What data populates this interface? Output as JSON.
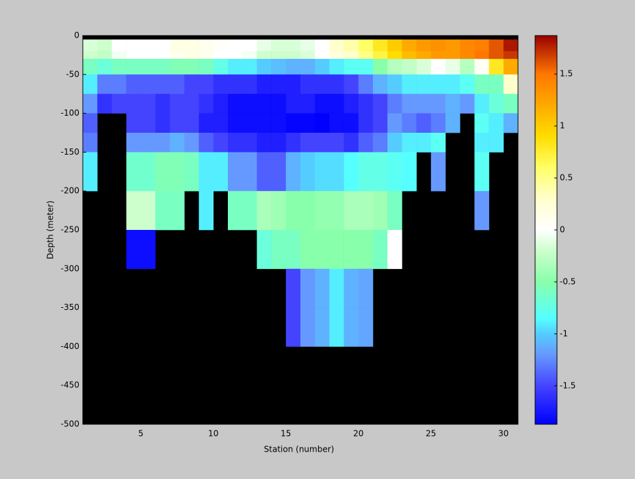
{
  "chart_data": {
    "type": "heatmap",
    "xlabel": "Station (number)",
    "ylabel": "Depth (meter)",
    "x": [
      1,
      2,
      3,
      4,
      5,
      6,
      7,
      8,
      9,
      10,
      11,
      12,
      13,
      14,
      15,
      16,
      17,
      18,
      19,
      20,
      21,
      22,
      23,
      24,
      25,
      26,
      27,
      28,
      29,
      30,
      31
    ],
    "y": [
      -5,
      -20,
      -30,
      -50,
      -75,
      -100,
      -125,
      -150,
      -200,
      -250,
      -300,
      -350,
      -400
    ],
    "values": [
      [
        -0.15,
        -0.2,
        0,
        0,
        0,
        0,
        0.15,
        0.15,
        0.1,
        0.05,
        0,
        0,
        -0.1,
        -0.15,
        -0.15,
        -0.1,
        0,
        0.3,
        0.4,
        0.6,
        0.8,
        1.0,
        1.2,
        1.3,
        1.35,
        1.3,
        1.4,
        1.45,
        1.6,
        1.8
      ],
      [
        -0.2,
        -0.25,
        -0.05,
        0,
        0,
        0,
        0.1,
        0.15,
        0.1,
        0,
        0,
        -0.05,
        -0.2,
        -0.2,
        -0.2,
        -0.15,
        0,
        0.2,
        0.3,
        0.5,
        0.7,
        0.9,
        1.1,
        1.2,
        1.3,
        1.3,
        1.4,
        1.5,
        1.6,
        1.7
      ],
      [
        -0.6,
        -0.7,
        -0.6,
        -0.6,
        -0.6,
        -0.6,
        -0.55,
        -0.55,
        -0.6,
        -0.75,
        -0.9,
        -0.9,
        -1.0,
        -1.05,
        -1.1,
        -1.1,
        -1.0,
        -0.9,
        -0.8,
        -0.8,
        -0.5,
        -0.3,
        -0.25,
        -0.15,
        0,
        -0.1,
        -0.3,
        0.05,
        0.8,
        1.2
      ],
      [
        -0.9,
        -1.3,
        -1.3,
        -1.4,
        -1.4,
        -1.4,
        -1.4,
        -1.5,
        -1.5,
        -1.6,
        -1.6,
        -1.6,
        -1.7,
        -1.7,
        -1.7,
        -1.6,
        -1.6,
        -1.6,
        -1.5,
        -1.3,
        -1.1,
        -1.0,
        -0.9,
        -0.9,
        -0.9,
        -0.9,
        -0.8,
        -0.6,
        -0.6,
        0.3
      ],
      [
        -1.2,
        -1.6,
        -1.5,
        -1.5,
        -1.5,
        -1.6,
        -1.5,
        -1.5,
        -1.6,
        -1.7,
        -1.8,
        -1.8,
        -1.8,
        -1.8,
        -1.7,
        -1.7,
        -1.8,
        -1.8,
        -1.7,
        -1.6,
        -1.5,
        -1.3,
        -1.2,
        -1.2,
        -1.2,
        -1.1,
        -1.2,
        -0.9,
        -0.7,
        -0.6
      ],
      [
        -1.4,
        null,
        null,
        -1.5,
        -1.5,
        -1.6,
        -1.5,
        -1.5,
        -1.7,
        -1.7,
        -1.8,
        -1.8,
        -1.8,
        -1.8,
        -1.85,
        -1.85,
        -1.87,
        -1.8,
        -1.8,
        -1.6,
        -1.5,
        -1.2,
        -1.3,
        -1.4,
        -1.3,
        -1.1,
        null,
        -0.8,
        -0.9,
        -1.1
      ],
      [
        -1.3,
        null,
        null,
        -1.2,
        -1.2,
        -1.2,
        -1.1,
        -1.2,
        -1.4,
        -1.5,
        -1.6,
        -1.6,
        -1.7,
        -1.7,
        -1.6,
        -1.5,
        -1.5,
        -1.5,
        -1.6,
        -1.4,
        -1.3,
        -1.0,
        -0.9,
        -0.9,
        -0.8,
        null,
        null,
        -0.9,
        -0.9,
        null
      ],
      [
        -0.9,
        null,
        null,
        -0.65,
        -0.65,
        -0.55,
        -0.55,
        -0.6,
        -0.9,
        -0.9,
        -1.2,
        -1.2,
        -1.4,
        -1.4,
        -1.1,
        -1.0,
        -0.95,
        -0.95,
        -0.85,
        -0.75,
        -0.75,
        -0.8,
        -0.85,
        null,
        -1.2,
        null,
        null,
        -0.8,
        null,
        null
      ],
      [
        null,
        null,
        null,
        -0.2,
        -0.2,
        -0.6,
        -0.6,
        null,
        -0.9,
        null,
        -0.6,
        -0.6,
        -0.35,
        -0.4,
        -0.5,
        -0.5,
        -0.45,
        -0.45,
        -0.35,
        -0.35,
        -0.4,
        -0.6,
        null,
        null,
        null,
        null,
        null,
        -1.2,
        null,
        null
      ],
      [
        null,
        null,
        null,
        -1.8,
        -1.8,
        null,
        null,
        null,
        null,
        null,
        null,
        null,
        -0.7,
        -0.6,
        -0.6,
        -0.5,
        -0.5,
        -0.5,
        -0.5,
        -0.5,
        -0.6,
        0.0,
        null,
        null,
        null,
        null,
        null,
        null,
        null,
        null
      ],
      [
        null,
        null,
        null,
        null,
        null,
        null,
        null,
        null,
        null,
        null,
        null,
        null,
        null,
        null,
        -1.5,
        -1.2,
        -1.1,
        -0.9,
        -1.1,
        -1.15,
        null,
        null,
        null,
        null,
        null,
        null,
        null,
        null,
        null,
        null
      ],
      [
        null,
        null,
        null,
        null,
        null,
        null,
        null,
        null,
        null,
        null,
        null,
        null,
        null,
        null,
        -1.5,
        -1.2,
        -1.1,
        -0.9,
        -1.1,
        -1.15,
        null,
        null,
        null,
        null,
        null,
        null,
        null,
        null,
        null,
        null
      ]
    ],
    "xlim": [
      1,
      31
    ],
    "ylim": [
      -500,
      0
    ],
    "xticks": [
      5,
      10,
      15,
      20,
      25,
      30
    ],
    "yticks": [
      0,
      -50,
      -100,
      -150,
      -200,
      -250,
      -300,
      -350,
      -400,
      -450,
      -500
    ],
    "clim": [
      -1.87,
      1.87
    ],
    "cticks": [
      -1.5,
      -1,
      -0.5,
      0,
      0.5,
      1,
      1.5
    ],
    "background": "#000000",
    "colormap": [
      [
        -1.87,
        "#0000ff"
      ],
      [
        -1.5,
        "#4444ff"
      ],
      [
        -1.2,
        "#6699ff"
      ],
      [
        -1.0,
        "#55ccff"
      ],
      [
        -0.85,
        "#55ffff"
      ],
      [
        -0.5,
        "#88ffaa"
      ],
      [
        -0.2,
        "#ccffcc"
      ],
      [
        0,
        "#ffffff"
      ],
      [
        0.3,
        "#ffffcc"
      ],
      [
        0.6,
        "#ffff66"
      ],
      [
        0.9,
        "#ffdd00"
      ],
      [
        1.2,
        "#ffaa00"
      ],
      [
        1.5,
        "#ff7700"
      ],
      [
        1.87,
        "#990000"
      ]
    ]
  }
}
